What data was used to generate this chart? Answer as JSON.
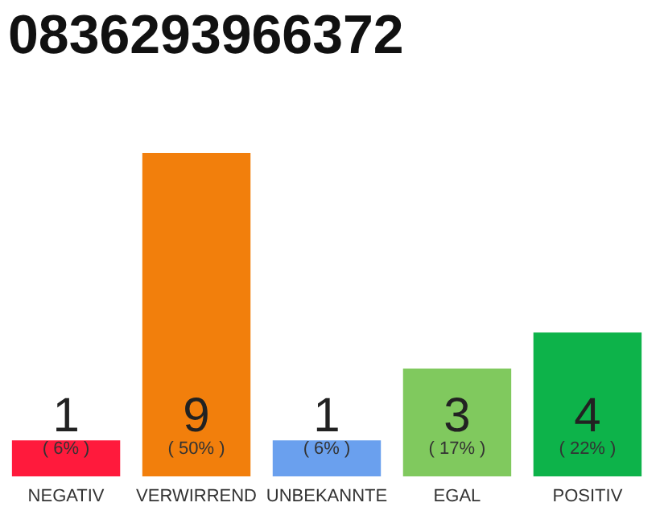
{
  "chart_data": {
    "type": "bar",
    "title": "0836293966372",
    "categories": [
      "NEGATIV",
      "VERWIRREND",
      "UNBEKANNTE",
      "EGAL",
      "POSITIV"
    ],
    "values": [
      1,
      9,
      1,
      3,
      4
    ],
    "colors": [
      "#ff1a3c",
      "#f27f0c",
      "#6aa0ee",
      "#80c95e",
      "#0db34a"
    ],
    "ylim": [
      0,
      9
    ],
    "data_labels": true,
    "annotations": [
      "( 6% )",
      "( 50% )",
      "( 6% )",
      "( 17% )",
      "( 22% )"
    ]
  }
}
